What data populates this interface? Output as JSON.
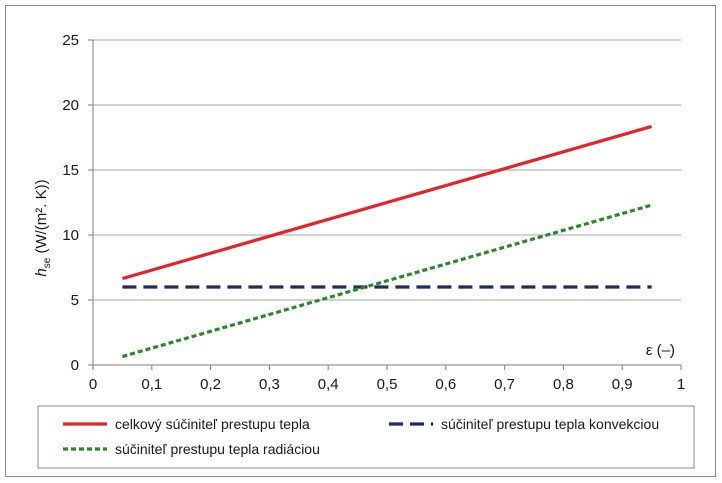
{
  "chart_data": {
    "type": "line",
    "title": "",
    "xlabel": "ε (–)",
    "ylabel_main": "h",
    "ylabel_sub": "se",
    "ylabel_unit": " (W/(m². K))",
    "xlim": [
      0,
      1
    ],
    "ylim": [
      0,
      25
    ],
    "xticks": [
      0,
      0.1,
      0.2,
      0.3,
      0.4,
      0.5,
      0.6,
      0.7,
      0.8,
      0.9,
      1
    ],
    "xtick_labels": [
      "0",
      "0,1",
      "0,2",
      "0,3",
      "0,4",
      "0,5",
      "0,6",
      "0,7",
      "0,8",
      "0,9",
      "1"
    ],
    "yticks": [
      0,
      5,
      10,
      15,
      20,
      25
    ],
    "ytick_labels": [
      "0",
      "5",
      "10",
      "15",
      "20",
      "25"
    ],
    "grid": true,
    "series": [
      {
        "name": "celkový súčiniteľ prestupu tepla",
        "color": "#e8222a",
        "style": "solid",
        "x": [
          0.05,
          0.95
        ],
        "y": [
          6.65,
          18.35
        ]
      },
      {
        "name": "súčiniteľ prestupu tepla konvekciou",
        "color": "#1f2a6b",
        "style": "dash",
        "x": [
          0.05,
          0.95
        ],
        "y": [
          6.0,
          6.0
        ]
      },
      {
        "name": "súčiniteľ prestupu tepla radiáciou",
        "color": "#2a8a2a",
        "style": "dot",
        "x": [
          0.05,
          0.95
        ],
        "y": [
          0.65,
          12.3
        ]
      }
    ],
    "legend_position": "bottom"
  }
}
